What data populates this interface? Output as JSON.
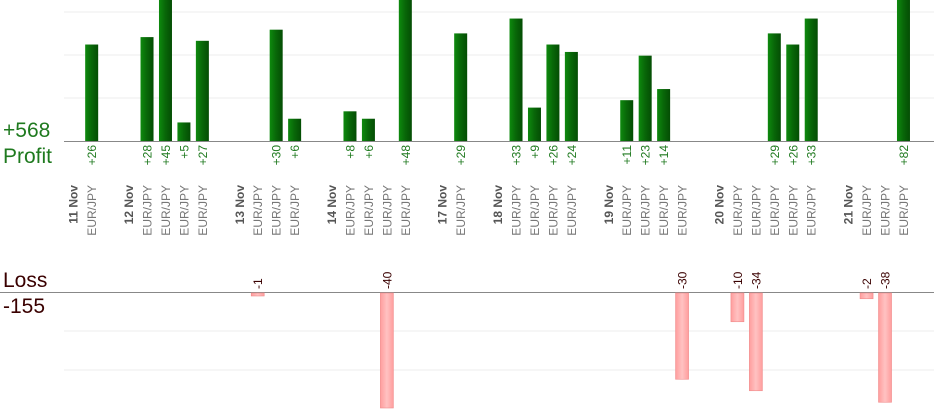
{
  "summary": {
    "profit_total": "+568",
    "profit_label": "Profit",
    "loss_label": "Loss",
    "loss_total": "-155"
  },
  "colors": {
    "profit_bar": "#0a6e0a",
    "profit_text": "#1f7a1f",
    "loss_bar": "#ffb3b3",
    "loss_bar_edge": "#f08a8a",
    "loss_text": "#3a0000",
    "axis": "#888888",
    "grid": "#ececec",
    "date_text": "#555555",
    "pair_text": "#777777"
  },
  "chart_data": {
    "type": "bar",
    "title": "",
    "grid": true,
    "profit_axis_max": 38,
    "loss_axis_min": -40,
    "categories": [
      {
        "kind": "date",
        "label": "11 Nov"
      },
      {
        "kind": "pair",
        "label": "EUR/JPY",
        "profit": 26,
        "profit_label": "+26"
      },
      {
        "kind": "gap"
      },
      {
        "kind": "date",
        "label": "12 Nov"
      },
      {
        "kind": "pair",
        "label": "EUR/JPY",
        "profit": 28,
        "profit_label": "+28"
      },
      {
        "kind": "pair",
        "label": "EUR/JPY",
        "profit": 45,
        "profit_label": "+45"
      },
      {
        "kind": "pair",
        "label": "EUR/JPY",
        "profit": 5,
        "profit_label": "+5"
      },
      {
        "kind": "pair",
        "label": "EUR/JPY",
        "profit": 27,
        "profit_label": "+27"
      },
      {
        "kind": "gap"
      },
      {
        "kind": "date",
        "label": "13 Nov"
      },
      {
        "kind": "pair",
        "label": "EUR/JPY",
        "loss": -1,
        "loss_label": "-1"
      },
      {
        "kind": "pair",
        "label": "EUR/JPY",
        "profit": 30,
        "profit_label": "+30"
      },
      {
        "kind": "pair",
        "label": "EUR/JPY",
        "profit": 6,
        "profit_label": "+6"
      },
      {
        "kind": "gap"
      },
      {
        "kind": "date",
        "label": "14 Nov"
      },
      {
        "kind": "pair",
        "label": "EUR/JPY",
        "profit": 8,
        "profit_label": "+8"
      },
      {
        "kind": "pair",
        "label": "EUR/JPY",
        "profit": 6,
        "profit_label": "+6"
      },
      {
        "kind": "pair",
        "label": "EUR/JPY",
        "loss": -40,
        "loss_label": "-40"
      },
      {
        "kind": "pair",
        "label": "EUR/JPY",
        "profit": 48,
        "profit_label": "+48"
      },
      {
        "kind": "gap"
      },
      {
        "kind": "date",
        "label": "17 Nov"
      },
      {
        "kind": "pair",
        "label": "EUR/JPY",
        "profit": 29,
        "profit_label": "+29"
      },
      {
        "kind": "gap"
      },
      {
        "kind": "date",
        "label": "18 Nov"
      },
      {
        "kind": "pair",
        "label": "EUR/JPY",
        "profit": 33,
        "profit_label": "+33"
      },
      {
        "kind": "pair",
        "label": "EUR/JPY",
        "profit": 9,
        "profit_label": "+9"
      },
      {
        "kind": "pair",
        "label": "EUR/JPY",
        "profit": 26,
        "profit_label": "+26"
      },
      {
        "kind": "pair",
        "label": "EUR/JPY",
        "profit": 24,
        "profit_label": "+24"
      },
      {
        "kind": "gap"
      },
      {
        "kind": "date",
        "label": "19 Nov"
      },
      {
        "kind": "pair",
        "label": "EUR/JPY",
        "profit": 11,
        "profit_label": "+11"
      },
      {
        "kind": "pair",
        "label": "EUR/JPY",
        "profit": 23,
        "profit_label": "+23"
      },
      {
        "kind": "pair",
        "label": "EUR/JPY",
        "profit": 14,
        "profit_label": "+14"
      },
      {
        "kind": "pair",
        "label": "EUR/JPY",
        "loss": -30,
        "loss_label": "-30"
      },
      {
        "kind": "gap"
      },
      {
        "kind": "date",
        "label": "20 Nov"
      },
      {
        "kind": "pair",
        "label": "EUR/JPY",
        "loss": -10,
        "loss_label": "-10"
      },
      {
        "kind": "pair",
        "label": "EUR/JPY",
        "loss": -34,
        "loss_label": "-34"
      },
      {
        "kind": "pair",
        "label": "EUR/JPY",
        "profit": 29,
        "profit_label": "+29"
      },
      {
        "kind": "pair",
        "label": "EUR/JPY",
        "profit": 26,
        "profit_label": "+26"
      },
      {
        "kind": "pair",
        "label": "EUR/JPY",
        "profit": 33,
        "profit_label": "+33"
      },
      {
        "kind": "gap"
      },
      {
        "kind": "date",
        "label": "21 Nov"
      },
      {
        "kind": "pair",
        "label": "EUR/JPY",
        "loss": -2,
        "loss_label": "-2"
      },
      {
        "kind": "pair",
        "label": "EUR/JPY",
        "loss": -38,
        "loss_label": "-38"
      },
      {
        "kind": "pair",
        "label": "EUR/JPY",
        "profit": 82,
        "profit_label": "+82"
      }
    ]
  }
}
